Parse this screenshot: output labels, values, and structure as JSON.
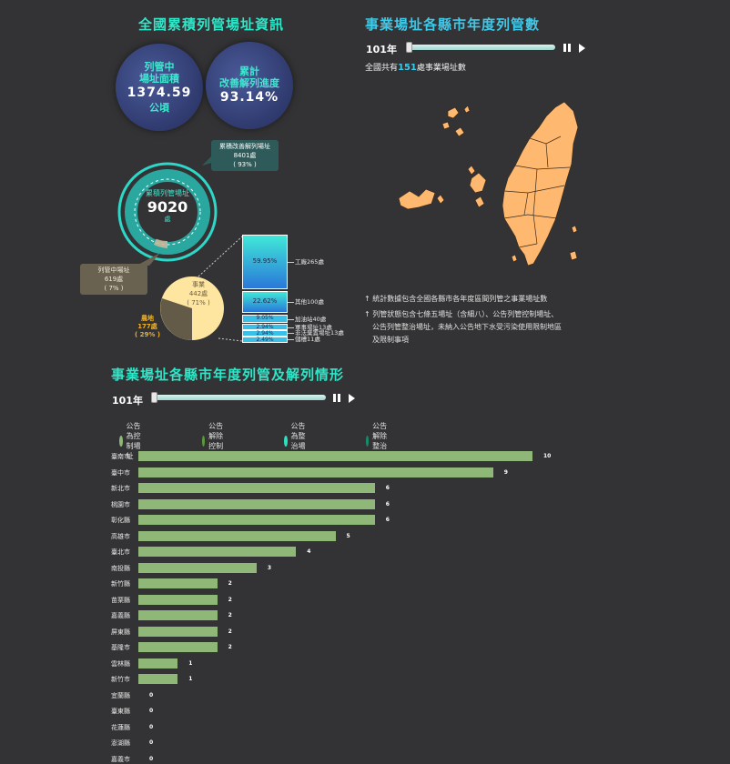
{
  "left_panel": {
    "title": "全國累積列管場址資訊",
    "bubble_area": {
      "label1": "列管中",
      "label2": "場址面積",
      "value": "1374.59",
      "unit": "公頃"
    },
    "bubble_rate": {
      "label1": "累計",
      "label2": "改善解列進度",
      "value": "93.14%"
    },
    "ring": {
      "label": "累積列管場址",
      "value": "9020",
      "unit": "處"
    },
    "callout_released": {
      "l1": "累積改善解列場址",
      "l2": "8401處",
      "l3": "( 93% )"
    },
    "callout_listed": {
      "l1": "列管中場址",
      "l2": "619處",
      "l3": "( 7% )"
    },
    "pie": {
      "business": {
        "l1": "事業",
        "l2": "442處",
        "l3": "( 71% )"
      },
      "farmland": {
        "l1": "農地",
        "l2": "177處",
        "l3": "( 29% )"
      }
    },
    "stack": [
      {
        "pct": "59.95%",
        "label": "工廠265處"
      },
      {
        "pct": "22.62%",
        "label": "其他100處"
      },
      {
        "pct": "9.05%",
        "label": "加油站40處"
      },
      {
        "pct": "2.94%",
        "label": "軍事場址13處"
      },
      {
        "pct": "2.94%",
        "label": "非法棄置場址13處"
      },
      {
        "pct": "2.49%",
        "label": "儲槽11處"
      }
    ]
  },
  "right_panel": {
    "title": "事業場址各縣市年度列管數",
    "year": "101年",
    "summary_prefix": "全國共有",
    "summary_value": "151",
    "summary_suffix": "處事業場址數",
    "notes": [
      "統計數據包含全國各縣市各年度區間列管之事業場址數",
      "列管狀態包含七條五場址（含細八）、公告列管控制場址、",
      "公告列管整治場址，未納入公告地下水受污染使用限制地區",
      "及限制事項"
    ],
    "colors": {
      "map_fill": "#ffb870",
      "map_stroke": "#3a2a1a"
    }
  },
  "bottom": {
    "title": "事業場址各縣市年度列管及解列情形",
    "year": "101年",
    "legend": [
      {
        "label": "公告為控制場址",
        "color": "#8fb878"
      },
      {
        "label": "公告解除控制場址",
        "color": "#5a9a3a"
      },
      {
        "label": "公告為整治場址",
        "color": "#2ee0c0"
      },
      {
        "label": "公告解除整治場址",
        "color": "#1a8a6a"
      }
    ]
  },
  "chart_data": {
    "type": "bar",
    "orientation": "horizontal",
    "categories": [
      "臺南市",
      "臺中市",
      "新北市",
      "桃園市",
      "彰化縣",
      "高雄市",
      "臺北市",
      "南投縣",
      "新竹縣",
      "苗栗縣",
      "嘉義縣",
      "屏東縣",
      "基隆市",
      "雲林縣",
      "新竹市",
      "宜蘭縣",
      "臺東縣",
      "花蓮縣",
      "澎湖縣",
      "嘉義市"
    ],
    "series": [
      {
        "name": "公告為控制場址",
        "values": [
          10,
          9,
          6,
          6,
          6,
          5,
          4,
          3,
          2,
          2,
          2,
          2,
          2,
          1,
          1,
          0,
          0,
          0,
          0,
          0
        ]
      }
    ],
    "xlim": [
      0,
      10
    ]
  }
}
